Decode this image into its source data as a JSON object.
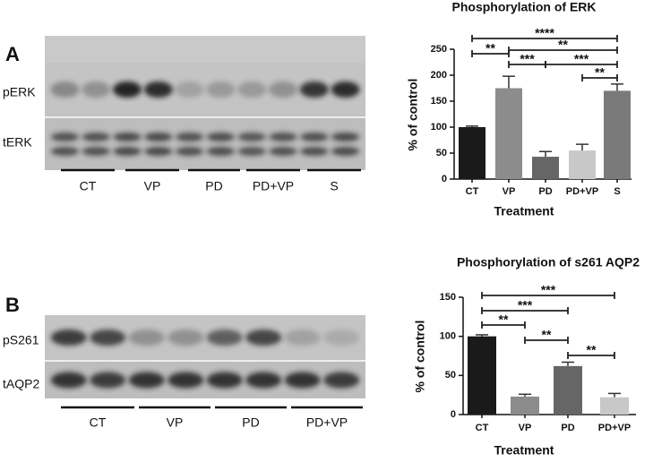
{
  "panels": [
    {
      "label": "A",
      "blot": {
        "rows": [
          "pERK",
          "tERK"
        ],
        "lanes": [
          "CT",
          "VP",
          "PD",
          "PD+VP",
          "S"
        ]
      }
    },
    {
      "label": "B",
      "blot": {
        "rows": [
          "pS261",
          "tAQP2"
        ],
        "lanes": [
          "CT",
          "VP",
          "PD",
          "PD+VP"
        ]
      }
    }
  ],
  "chart_data": [
    {
      "type": "bar",
      "title": "Phosphorylation of ERK",
      "x_label": "Treatment",
      "y_label": "% of control",
      "categories": [
        "CT",
        "VP",
        "PD",
        "PD+VP",
        "S"
      ],
      "values": [
        100,
        175,
        43,
        55,
        170
      ],
      "errors": [
        2,
        23,
        10,
        12,
        13
      ],
      "colors": [
        "#1a1a1a",
        "#8c8c8c",
        "#666666",
        "#c8c8c8",
        "#7a7a7a"
      ],
      "ylim": [
        0,
        250
      ],
      "yticks": [
        0,
        50,
        100,
        150,
        200,
        250
      ],
      "annotations": [
        {
          "label": "****",
          "from": "CT",
          "to": "S"
        },
        {
          "label": "**",
          "from": "CT",
          "to": "VP"
        },
        {
          "label": "**",
          "from": "VP",
          "to": "S"
        },
        {
          "label": "***",
          "from": "VP",
          "to": "PD"
        },
        {
          "label": "***",
          "from": "PD",
          "to": "S"
        },
        {
          "label": "**",
          "from": "PD+VP",
          "to": "S"
        }
      ]
    },
    {
      "type": "bar",
      "title": "Phosphorylation of s261 AQP2",
      "x_label": "Treatment",
      "y_label": "% of control",
      "categories": [
        "CT",
        "VP",
        "PD",
        "PD+VP"
      ],
      "values": [
        100,
        23,
        62,
        22
      ],
      "errors": [
        2,
        3,
        5,
        5
      ],
      "colors": [
        "#1a1a1a",
        "#8c8c8c",
        "#666666",
        "#c8c8c8"
      ],
      "ylim": [
        0,
        150
      ],
      "yticks": [
        0,
        50,
        100,
        150
      ],
      "annotations": [
        {
          "label": "***",
          "from": "CT",
          "to": "PD+VP"
        },
        {
          "label": "***",
          "from": "CT",
          "to": "PD"
        },
        {
          "label": "**",
          "from": "CT",
          "to": "VP"
        },
        {
          "label": "**",
          "from": "VP",
          "to": "PD"
        },
        {
          "label": "**",
          "from": "PD",
          "to": "PD+VP"
        }
      ]
    }
  ]
}
